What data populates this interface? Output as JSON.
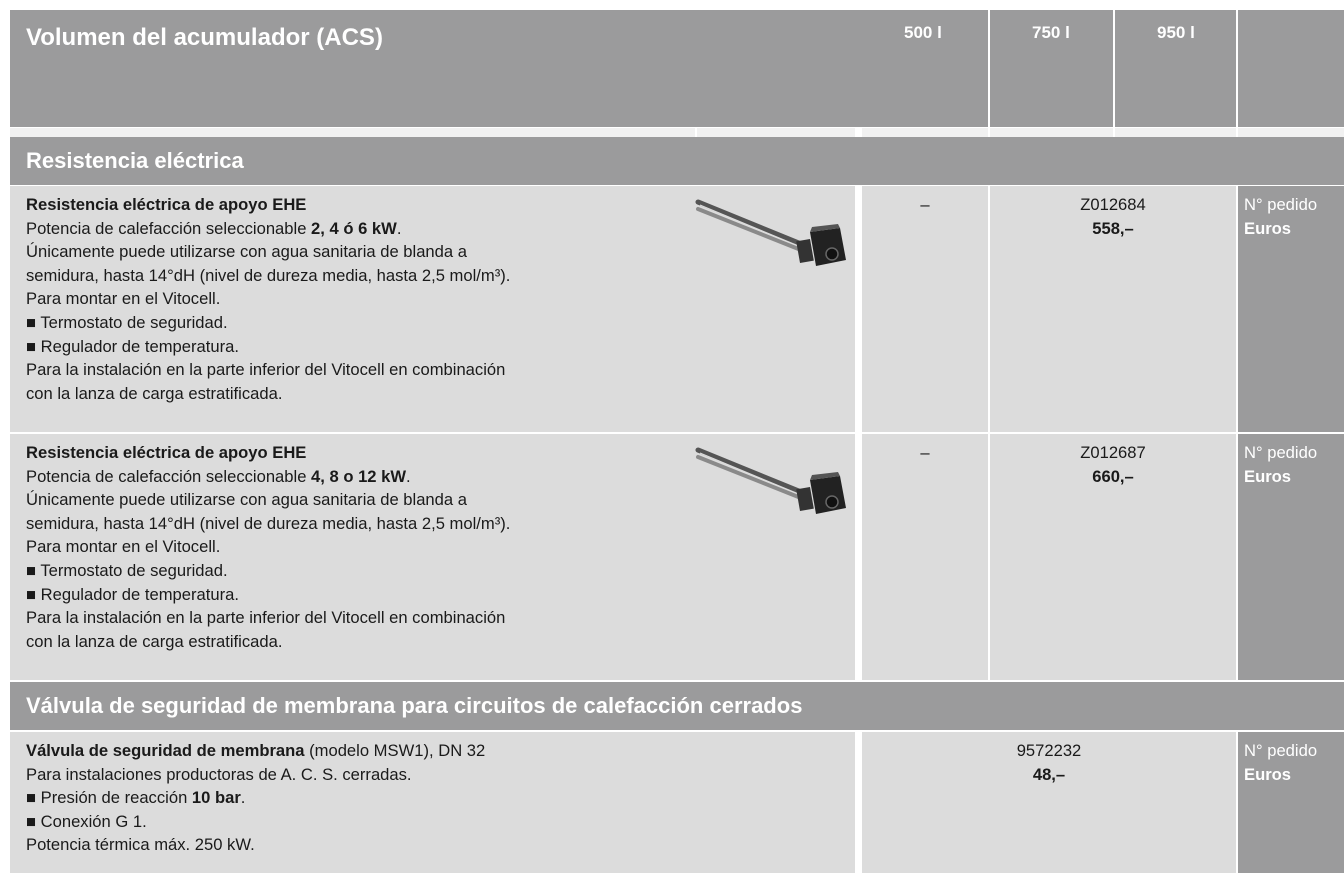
{
  "header": {
    "title": "Volumen del acumulador (ACS)",
    "columns": [
      "500 l",
      "750 l",
      "950 l"
    ]
  },
  "sections": [
    {
      "title": "Resistencia eléctrica",
      "rows": [
        {
          "lines": [
            [
              {
                "text": "Resistencia eléctrica de apoyo EHE",
                "bold": true
              }
            ],
            [
              "Potencia de calefacción seleccionable ",
              {
                "text": "2, 4 ó 6 kW",
                "bold": true
              },
              "."
            ],
            [
              "Únicamente puede utilizarse con agua sanitaria de blanda a"
            ],
            [
              "semidura, hasta 14°dH (nivel de dureza media, hasta 2,5 mol/m³)."
            ],
            [
              "Para montar en el Vitocell."
            ],
            [
              "■ Termostato de seguridad."
            ],
            [
              "■ Regulador de temperatura."
            ],
            [
              "Para la instalación en la parte inferior del Vitocell en combinación"
            ],
            [
              "con la lanza de carga estratificada."
            ]
          ],
          "dash": "–",
          "order": "Z012684",
          "price": "558,–",
          "labels": [
            "N° pedido",
            "Euros"
          ]
        },
        {
          "lines": [
            [
              {
                "text": "Resistencia eléctrica de apoyo EHE",
                "bold": true
              }
            ],
            [
              "Potencia de calefacción seleccionable ",
              {
                "text": "4, 8 o 12 kW",
                "bold": true
              },
              "."
            ],
            [
              "Únicamente puede utilizarse con agua sanitaria de blanda a"
            ],
            [
              "semidura, hasta 14°dH (nivel de dureza media, hasta 2,5 mol/m³)."
            ],
            [
              "Para montar en el Vitocell."
            ],
            [
              "■ Termostato de seguridad."
            ],
            [
              "■ Regulador de temperatura."
            ],
            [
              "Para la instalación en la parte inferior del Vitocell en combinación"
            ],
            [
              "con la lanza de carga estratificada."
            ]
          ],
          "dash": "–",
          "order": "Z012687",
          "price": "660,–",
          "labels": [
            "N° pedido",
            "Euros"
          ]
        }
      ]
    },
    {
      "title": "Válvula de seguridad de membrana para circuitos de calefacción cerrados",
      "rows": [
        {
          "lines": [
            [
              {
                "text": "Válvula de seguridad de membrana",
                "bold": true
              },
              " (modelo MSW1), DN 32"
            ],
            [
              "Para instalaciones productoras de A. C. S. cerradas."
            ],
            [
              "■ Presión de reacción ",
              {
                "text": "10 bar",
                "bold": true
              },
              "."
            ],
            [
              "■ Conexión G 1."
            ],
            [
              "Potencia térmica máx. 250 kW."
            ]
          ],
          "order": "9572232",
          "price": "48,–",
          "labels": [
            "N° pedido",
            "Euros"
          ]
        }
      ]
    }
  ]
}
